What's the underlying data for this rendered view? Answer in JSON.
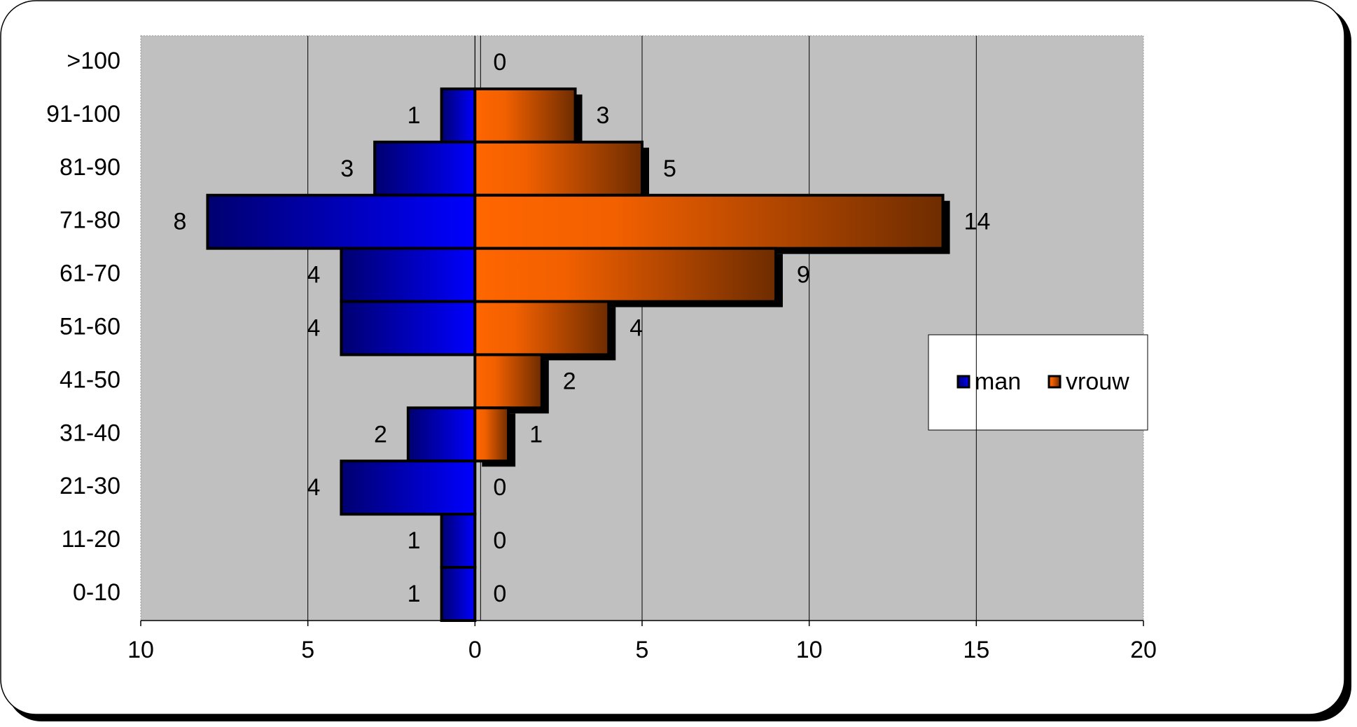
{
  "chart_data": {
    "type": "pyramid",
    "categories": [
      ">100",
      "91-100",
      "81-90",
      "71-80",
      "61-70",
      "51-60",
      "41-50",
      "31-40",
      "21-30",
      "11-20",
      "0-10"
    ],
    "series": [
      {
        "name": "man",
        "color": "#0000ff",
        "side": "left",
        "label_color": "#ff0000",
        "values": [
          null,
          1,
          3,
          8,
          4,
          4,
          0,
          2,
          4,
          1,
          1
        ]
      },
      {
        "name": "vrouw",
        "color": "#ff6600",
        "side": "right",
        "label_color": "#000000",
        "values": [
          0,
          3,
          5,
          14,
          9,
          4,
          2,
          1,
          0,
          0,
          0
        ]
      }
    ],
    "xlim": [
      -10,
      20
    ],
    "xticks": [
      {
        "value": -10,
        "label": "10"
      },
      {
        "value": -5,
        "label": "5"
      },
      0,
      5,
      10,
      15,
      20
    ],
    "grid": true
  }
}
